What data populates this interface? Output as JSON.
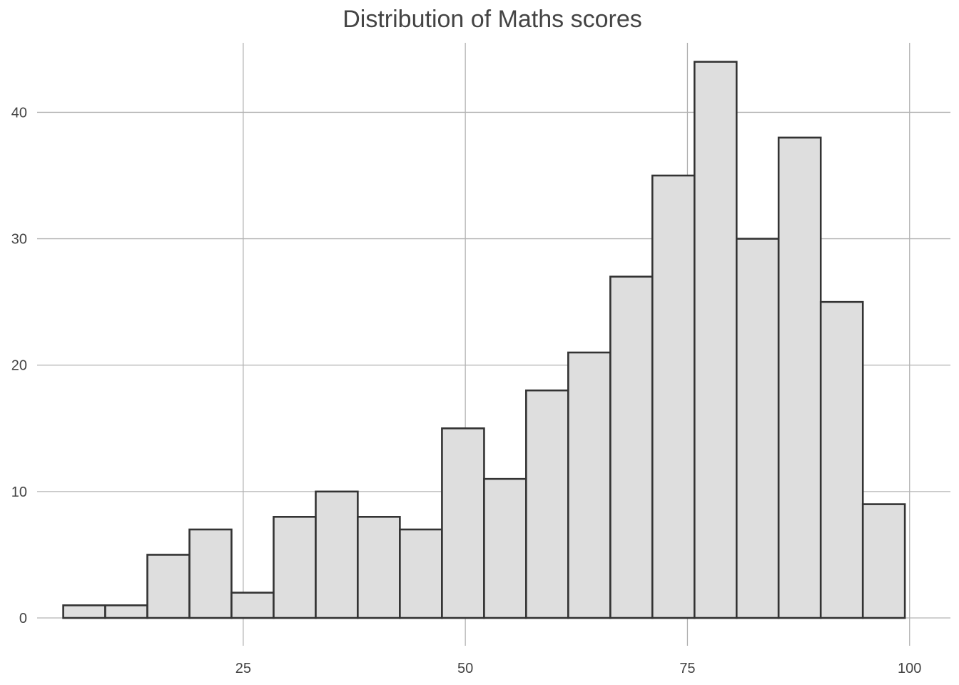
{
  "chart_data": {
    "type": "bar",
    "title": "Distribution of Maths scores",
    "xlabel": "",
    "ylabel": "",
    "bin_width": 4.737,
    "bins": [
      {
        "x0": 4.74,
        "x1": 9.47,
        "count": 1
      },
      {
        "x0": 9.47,
        "x1": 14.21,
        "count": 1
      },
      {
        "x0": 14.21,
        "x1": 18.95,
        "count": 5
      },
      {
        "x0": 18.95,
        "x1": 23.68,
        "count": 7
      },
      {
        "x0": 23.68,
        "x1": 28.42,
        "count": 2
      },
      {
        "x0": 28.42,
        "x1": 33.16,
        "count": 8
      },
      {
        "x0": 33.16,
        "x1": 37.89,
        "count": 10
      },
      {
        "x0": 37.89,
        "x1": 42.63,
        "count": 8
      },
      {
        "x0": 42.63,
        "x1": 47.37,
        "count": 7
      },
      {
        "x0": 47.37,
        "x1": 52.11,
        "count": 15
      },
      {
        "x0": 52.11,
        "x1": 56.84,
        "count": 11
      },
      {
        "x0": 56.84,
        "x1": 61.58,
        "count": 18
      },
      {
        "x0": 61.58,
        "x1": 66.32,
        "count": 21
      },
      {
        "x0": 66.32,
        "x1": 71.05,
        "count": 27
      },
      {
        "x0": 71.05,
        "x1": 75.79,
        "count": 35
      },
      {
        "x0": 75.79,
        "x1": 80.53,
        "count": 44
      },
      {
        "x0": 80.53,
        "x1": 85.26,
        "count": 30
      },
      {
        "x0": 85.26,
        "x1": 90.0,
        "count": 38
      },
      {
        "x0": 90.0,
        "x1": 94.74,
        "count": 25
      },
      {
        "x0": 94.74,
        "x1": 99.47,
        "count": 9
      }
    ],
    "xlim": [
      1.8,
      104.6
    ],
    "ylim": [
      -2.2,
      45.5
    ],
    "x_ticks": [
      25,
      50,
      75,
      100
    ],
    "y_ticks": [
      0,
      10,
      20,
      30,
      40
    ],
    "grid": true,
    "legend": "none",
    "colors": {
      "fill": "#dedede",
      "stroke": "#333333",
      "grid": "#b3b3b3",
      "text": "#444444"
    }
  }
}
